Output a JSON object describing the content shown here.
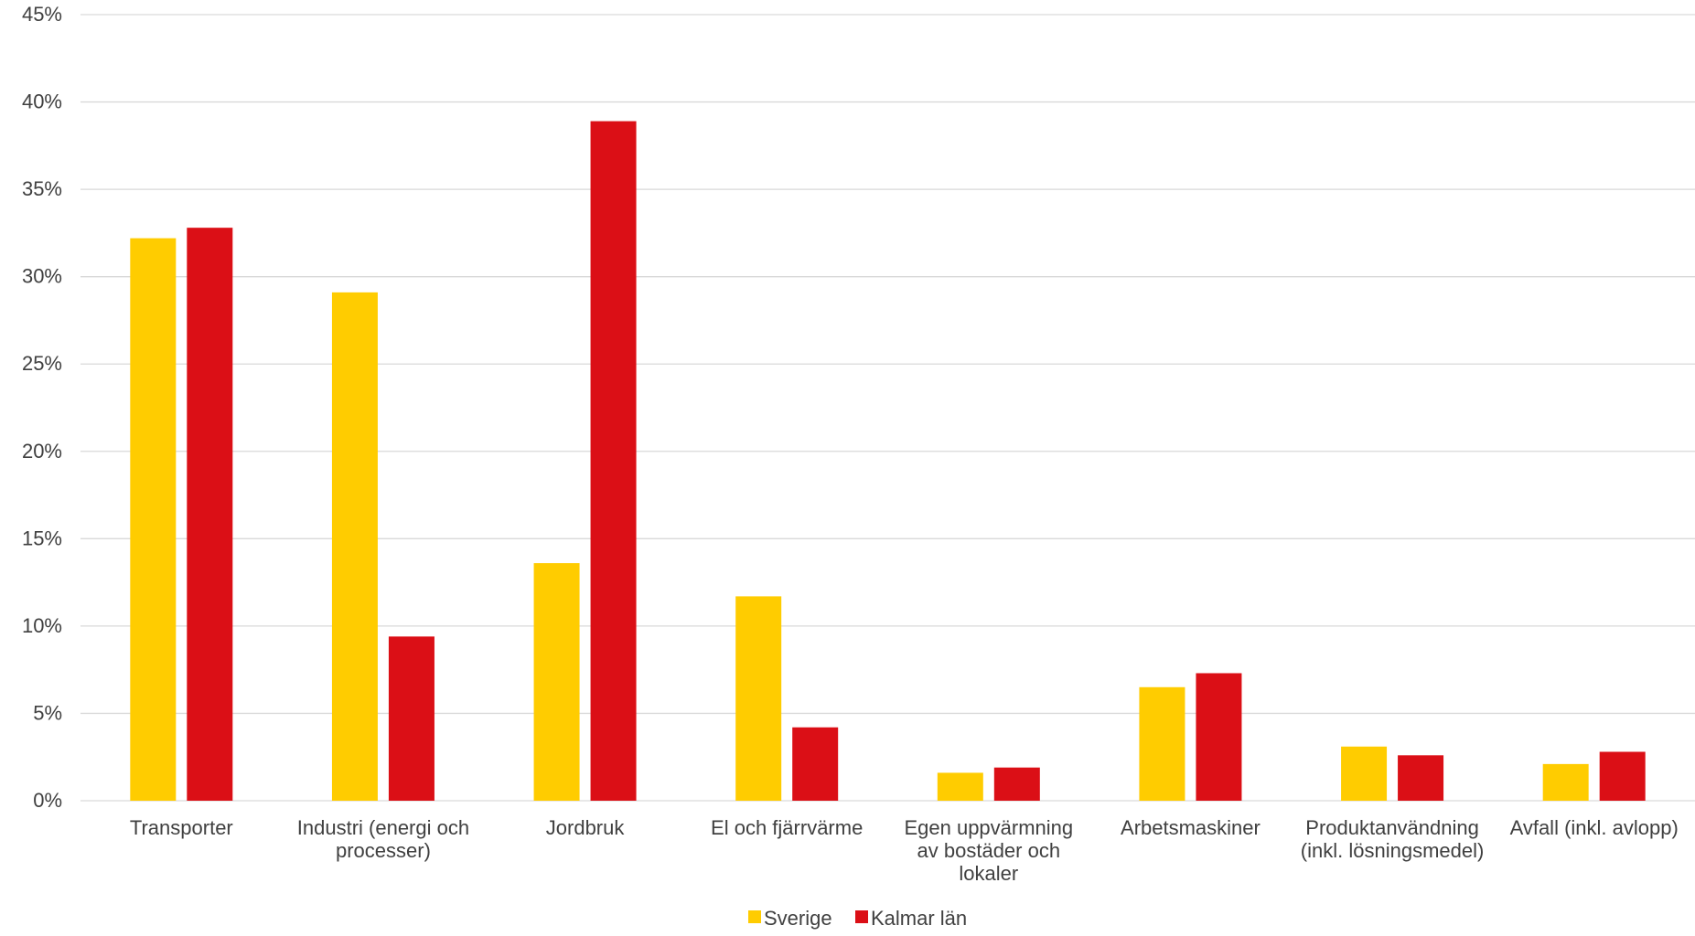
{
  "chart_data": {
    "type": "bar",
    "categories": [
      "Transporter",
      "Industri (energi och processer)",
      "Jordbruk",
      "El och fjärrvärme",
      "Egen uppvärmning av bostäder och lokaler",
      "Arbetsmaskiner",
      "Produktanvändning (inkl. lösningsmedel)",
      "Avfall (inkl. avlopp)"
    ],
    "category_lines": [
      [
        "Transporter"
      ],
      [
        "Industri (energi och",
        "processer)"
      ],
      [
        "Jordbruk"
      ],
      [
        "El och fjärrvärme"
      ],
      [
        "Egen uppvärmning",
        "av bostäder och",
        "lokaler"
      ],
      [
        "Arbetsmaskiner"
      ],
      [
        "Produktanvändning",
        "(inkl. lösningsmedel)"
      ],
      [
        "Avfall (inkl. avlopp)"
      ]
    ],
    "series": [
      {
        "name": "Sverige",
        "color": "#FFCC00",
        "values": [
          32.2,
          29.1,
          13.6,
          11.7,
          1.6,
          6.5,
          3.1,
          2.1
        ]
      },
      {
        "name": "Kalmar län",
        "color": "#DB0F16",
        "values": [
          32.8,
          9.4,
          38.9,
          4.2,
          1.9,
          7.3,
          2.6,
          2.8
        ]
      }
    ],
    "y_ticks": [
      "0%",
      "5%",
      "10%",
      "15%",
      "20%",
      "25%",
      "30%",
      "35%",
      "40%",
      "45%"
    ],
    "ylim": [
      0,
      45
    ],
    "grid": true,
    "legend_position": "bottom-center"
  }
}
